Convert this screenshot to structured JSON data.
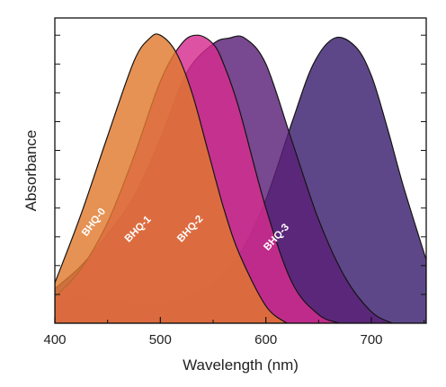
{
  "chart_data": {
    "type": "area",
    "title": "",
    "xlabel": "Wavelength (nm)",
    "ylabel": "Absorbance",
    "xlim": [
      400,
      752
    ],
    "ylim": [
      0,
      1.06
    ],
    "xticks": [
      400,
      500,
      600,
      700
    ],
    "xtick_labels": [
      "400",
      "500",
      "600",
      "700"
    ],
    "grid": false,
    "legend": "none (series labelled directly on curves)",
    "series": [
      {
        "name": "BHQ-3",
        "color": "#3a1f6e",
        "x": [
          400,
          425,
          450,
          475,
          500,
          525,
          550,
          575,
          600,
          625,
          645,
          665,
          685,
          700,
          715,
          730,
          752
        ],
        "y": [
          0.08,
          0.09,
          0.08,
          0.07,
          0.07,
          0.09,
          0.14,
          0.24,
          0.43,
          0.7,
          0.9,
          0.99,
          0.96,
          0.86,
          0.68,
          0.48,
          0.22
        ]
      },
      {
        "name": "BHQ-2",
        "color": "#5a2078",
        "x": [
          400,
          425,
          450,
          475,
          500,
          525,
          550,
          565,
          580,
          600,
          625,
          650,
          675,
          700,
          720
        ],
        "y": [
          0.12,
          0.2,
          0.31,
          0.44,
          0.64,
          0.87,
          0.97,
          0.99,
          0.99,
          0.9,
          0.63,
          0.36,
          0.16,
          0.04,
          0.0
        ]
      },
      {
        "name": "BHQ-1",
        "color": "#d52c8f",
        "x": [
          400,
          425,
          450,
          475,
          500,
          520,
          535,
          550,
          560,
          575,
          600,
          625,
          650,
          670
        ],
        "y": [
          0.09,
          0.19,
          0.35,
          0.58,
          0.84,
          0.97,
          1.0,
          0.97,
          0.9,
          0.74,
          0.4,
          0.14,
          0.03,
          0.0
        ]
      },
      {
        "name": "BHQ-0",
        "color": "#e07a2e",
        "x": [
          400,
          425,
          450,
          475,
          490,
          500,
          515,
          530,
          545,
          560,
          575,
          600,
          620
        ],
        "y": [
          0.14,
          0.38,
          0.65,
          0.91,
          0.99,
          1.0,
          0.94,
          0.8,
          0.6,
          0.4,
          0.24,
          0.06,
          0.0
        ]
      }
    ],
    "series_labels": [
      {
        "text": "BHQ-0",
        "x": 430,
        "y": 0.3,
        "angle": -53
      },
      {
        "text": "BHQ-1",
        "x": 470,
        "y": 0.28,
        "angle": -45
      },
      {
        "text": "BHQ-2",
        "x": 520,
        "y": 0.28,
        "angle": -47
      },
      {
        "text": "BHQ-3",
        "x": 602,
        "y": 0.25,
        "angle": -48
      }
    ]
  }
}
